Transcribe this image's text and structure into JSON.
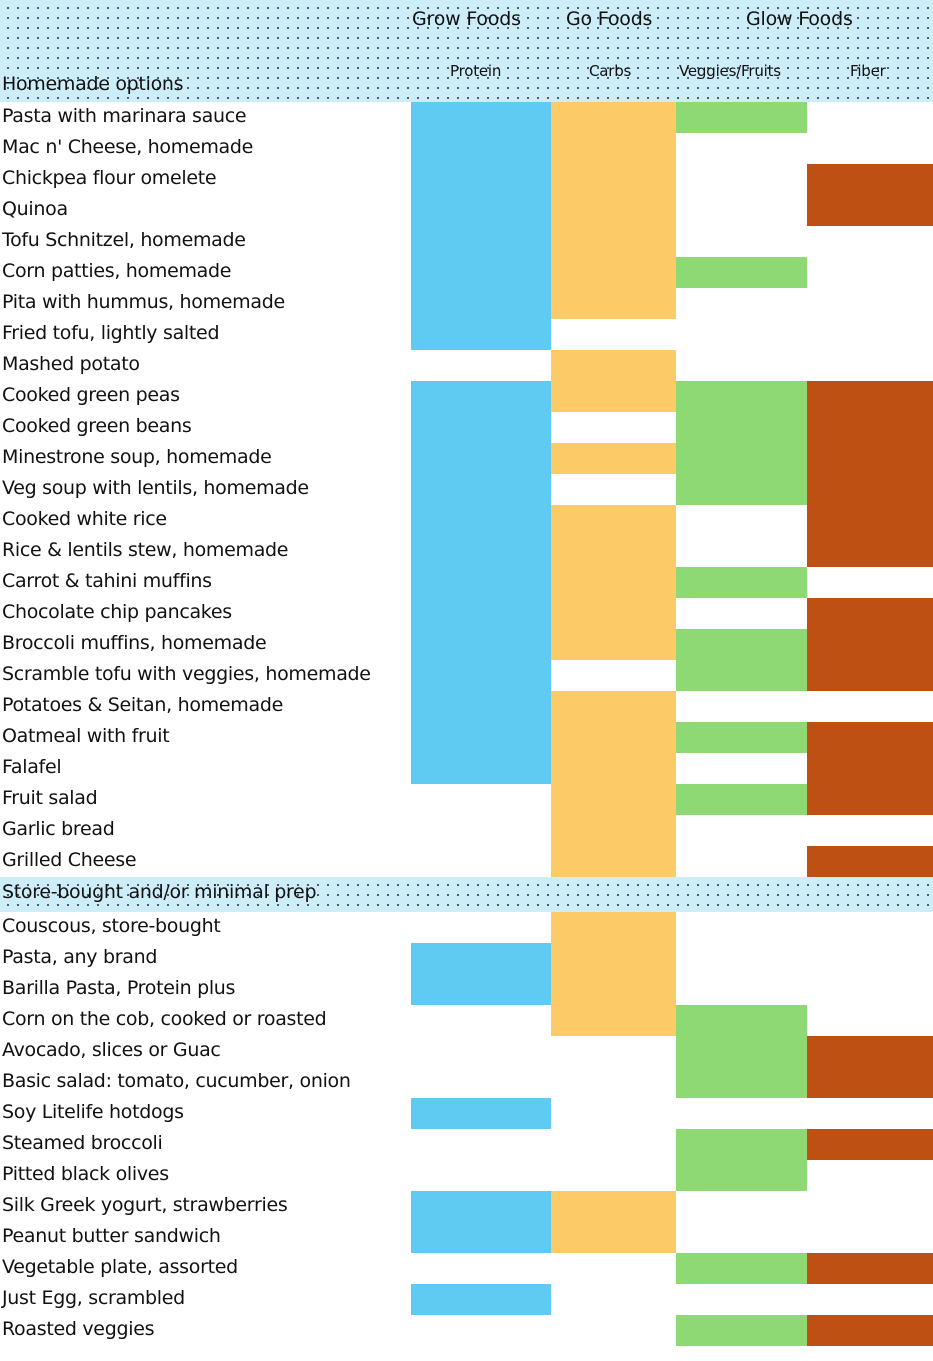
{
  "chart_data": {
    "type": "table",
    "title": "",
    "legend_position": "top",
    "groups": [
      {
        "label": "Grow Foods",
        "columns": [
          "Protein"
        ]
      },
      {
        "label": "Go Foods",
        "columns": [
          "Carbs"
        ]
      },
      {
        "label": "Glow Foods",
        "columns": [
          "Veggies/Fruits",
          "Fiber"
        ]
      }
    ],
    "columns": [
      "Protein",
      "Carbs",
      "Veggies/Fruits",
      "Fiber"
    ],
    "column_colors": {
      "Protein": "#5fcbf3",
      "Carbs": "#fdca68",
      "Veggies/Fruits": "#8fd974",
      "Fiber": "#bd5012"
    },
    "sections": [
      {
        "title": "Homemade options",
        "rows": [
          {
            "food": "Pasta with marinara sauce",
            "Protein": 1,
            "Carbs": 1,
            "Veggies/Fruits": 1,
            "Fiber": 0
          },
          {
            "food": "Mac n' Cheese, homemade",
            "Protein": 1,
            "Carbs": 1,
            "Veggies/Fruits": 0,
            "Fiber": 0
          },
          {
            "food": "Chickpea flour omelete",
            "Protein": 1,
            "Carbs": 1,
            "Veggies/Fruits": 0,
            "Fiber": 1
          },
          {
            "food": "Quinoa",
            "Protein": 1,
            "Carbs": 1,
            "Veggies/Fruits": 0,
            "Fiber": 1
          },
          {
            "food": "Tofu Schnitzel, homemade",
            "Protein": 1,
            "Carbs": 1,
            "Veggies/Fruits": 0,
            "Fiber": 0
          },
          {
            "food": "Corn patties, homemade",
            "Protein": 1,
            "Carbs": 1,
            "Veggies/Fruits": 1,
            "Fiber": 0
          },
          {
            "food": "Pita with hummus, homemade",
            "Protein": 1,
            "Carbs": 1,
            "Veggies/Fruits": 0,
            "Fiber": 0
          },
          {
            "food": "Fried tofu, lightly salted",
            "Protein": 1,
            "Carbs": 0,
            "Veggies/Fruits": 0,
            "Fiber": 0
          },
          {
            "food": "Mashed potato",
            "Protein": 0,
            "Carbs": 1,
            "Veggies/Fruits": 0,
            "Fiber": 0
          },
          {
            "food": "Cooked green peas",
            "Protein": 1,
            "Carbs": 1,
            "Veggies/Fruits": 1,
            "Fiber": 1
          },
          {
            "food": "Cooked green beans",
            "Protein": 1,
            "Carbs": 0,
            "Veggies/Fruits": 1,
            "Fiber": 1
          },
          {
            "food": "Minestrone soup, homemade",
            "Protein": 1,
            "Carbs": 1,
            "Veggies/Fruits": 1,
            "Fiber": 1
          },
          {
            "food": "Veg soup with lentils, homemade",
            "Protein": 1,
            "Carbs": 0,
            "Veggies/Fruits": 1,
            "Fiber": 1
          },
          {
            "food": "Cooked white rice",
            "Protein": 1,
            "Carbs": 1,
            "Veggies/Fruits": 0,
            "Fiber": 1
          },
          {
            "food": "Rice & lentils stew, homemade",
            "Protein": 1,
            "Carbs": 1,
            "Veggies/Fruits": 0,
            "Fiber": 1
          },
          {
            "food": "Carrot & tahini muffins",
            "Protein": 1,
            "Carbs": 1,
            "Veggies/Fruits": 1,
            "Fiber": 0
          },
          {
            "food": "Chocolate chip pancakes",
            "Protein": 1,
            "Carbs": 1,
            "Veggies/Fruits": 0,
            "Fiber": 1
          },
          {
            "food": "Broccoli muffins, homemade",
            "Protein": 1,
            "Carbs": 1,
            "Veggies/Fruits": 1,
            "Fiber": 1
          },
          {
            "food": "Scramble tofu with veggies, homemade",
            "Protein": 1,
            "Carbs": 0,
            "Veggies/Fruits": 1,
            "Fiber": 1
          },
          {
            "food": "Potatoes & Seitan, homemade",
            "Protein": 1,
            "Carbs": 1,
            "Veggies/Fruits": 0,
            "Fiber": 0
          },
          {
            "food": "Oatmeal with fruit",
            "Protein": 1,
            "Carbs": 1,
            "Veggies/Fruits": 1,
            "Fiber": 1
          },
          {
            "food": "Falafel",
            "Protein": 1,
            "Carbs": 1,
            "Veggies/Fruits": 0,
            "Fiber": 1
          },
          {
            "food": "Fruit salad",
            "Protein": 0,
            "Carbs": 1,
            "Veggies/Fruits": 1,
            "Fiber": 1
          },
          {
            "food": "Garlic bread",
            "Protein": 0,
            "Carbs": 1,
            "Veggies/Fruits": 0,
            "Fiber": 0
          },
          {
            "food": "Grilled Cheese",
            "Protein": 0,
            "Carbs": 1,
            "Veggies/Fruits": 0,
            "Fiber": 1
          }
        ]
      },
      {
        "title": "Store-bought and/or minimal prep",
        "rows": [
          {
            "food": "Couscous, store-bought",
            "Protein": 0,
            "Carbs": 1,
            "Veggies/Fruits": 0,
            "Fiber": 0
          },
          {
            "food": "Pasta, any brand",
            "Protein": 1,
            "Carbs": 1,
            "Veggies/Fruits": 0,
            "Fiber": 0
          },
          {
            "food": "Barilla Pasta, Protein plus",
            "Protein": 1,
            "Carbs": 1,
            "Veggies/Fruits": 0,
            "Fiber": 0
          },
          {
            "food": "Corn on the cob, cooked or roasted",
            "Protein": 0,
            "Carbs": 1,
            "Veggies/Fruits": 1,
            "Fiber": 0
          },
          {
            "food": "Avocado, slices or Guac",
            "Protein": 0,
            "Carbs": 0,
            "Veggies/Fruits": 1,
            "Fiber": 1
          },
          {
            "food": "Basic salad: tomato, cucumber, onion",
            "Protein": 0,
            "Carbs": 0,
            "Veggies/Fruits": 1,
            "Fiber": 1
          },
          {
            "food": "Soy Litelife hotdogs",
            "Protein": 1,
            "Carbs": 0,
            "Veggies/Fruits": 0,
            "Fiber": 0
          },
          {
            "food": "Steamed broccoli",
            "Protein": 0,
            "Carbs": 0,
            "Veggies/Fruits": 1,
            "Fiber": 1
          },
          {
            "food": "Pitted black olives",
            "Protein": 0,
            "Carbs": 0,
            "Veggies/Fruits": 1,
            "Fiber": 0
          },
          {
            "food": "Silk Greek yogurt, strawberries",
            "Protein": 1,
            "Carbs": 1,
            "Veggies/Fruits": 0,
            "Fiber": 0
          },
          {
            "food": "Peanut butter sandwich",
            "Protein": 1,
            "Carbs": 1,
            "Veggies/Fruits": 0,
            "Fiber": 0
          },
          {
            "food": "Vegetable plate, assorted",
            "Protein": 0,
            "Carbs": 0,
            "Veggies/Fruits": 1,
            "Fiber": 1
          },
          {
            "food": "Just Egg, scrambled",
            "Protein": 1,
            "Carbs": 0,
            "Veggies/Fruits": 0,
            "Fiber": 0
          },
          {
            "food": "Roasted veggies",
            "Protein": 0,
            "Carbs": 0,
            "Veggies/Fruits": 1,
            "Fiber": 1
          }
        ]
      }
    ]
  },
  "header": {
    "groups": {
      "grow": "Grow Foods",
      "go": "Go Foods",
      "glow": "Glow Foods"
    },
    "columns": {
      "protein": "Protein",
      "carbs": "Carbs",
      "veggies": "Veggies/Fruits",
      "fiber": "Fiber"
    },
    "section1_title": "Homemade options"
  },
  "section2": {
    "title": "Store-bought and/or minimal prep"
  }
}
